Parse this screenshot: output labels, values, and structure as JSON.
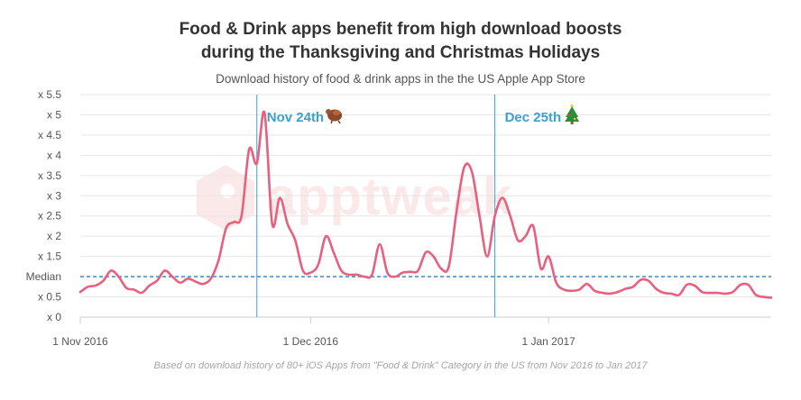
{
  "title_line1": "Food & Drink apps benefit from high download boosts",
  "title_line2": "during the Thanksgiving and Christmas Holidays",
  "subtitle": "Download history of food & drink apps in the the US Apple App Store",
  "footnote": "Based on download history of 80+ iOS Apps from \"Food & Drink\" Category in the US from Nov 2016 to Jan 2017",
  "watermark": "apptweak",
  "colors": {
    "line": "#e8607e",
    "median": "#2b7fc6",
    "marker": "#3d9fd3",
    "grid": "#e6e6e6"
  },
  "chart_data": {
    "type": "line",
    "title": "Food & Drink apps benefit from high download boosts during the Thanksgiving and Christmas Holidays",
    "subtitle": "Download history of food & drink apps in the the US Apple App Store",
    "x_start": "2016-11-01",
    "x_end": "2017-01-30",
    "xlim": [
      "2016-11-01",
      "2017-01-30"
    ],
    "ylim": [
      0,
      5.5
    ],
    "y_ticks": [
      {
        "value": 0,
        "label": "x 0"
      },
      {
        "value": 0.5,
        "label": "x 0.5"
      },
      {
        "value": 1,
        "label": "Median"
      },
      {
        "value": 1.5,
        "label": "x 1.5"
      },
      {
        "value": 2,
        "label": "x 2"
      },
      {
        "value": 2.5,
        "label": "x 2.5"
      },
      {
        "value": 3,
        "label": "x 3"
      },
      {
        "value": 3.5,
        "label": "x 3.5"
      },
      {
        "value": 4,
        "label": "x 4"
      },
      {
        "value": 4.5,
        "label": "x 4.5"
      },
      {
        "value": 5,
        "label": "x 5"
      },
      {
        "value": 5.5,
        "label": "x 5.5"
      }
    ],
    "x_ticks": [
      {
        "date": "2016-11-01",
        "label": "1 Nov 2016"
      },
      {
        "date": "2016-12-01",
        "label": "1 Dec 2016"
      },
      {
        "date": "2017-01-01",
        "label": "1 Jan 2017"
      }
    ],
    "median": 1,
    "grid": true,
    "annotations": [
      {
        "date": "2016-11-24",
        "label": "Nov 24th",
        "icon": "turkey-icon"
      },
      {
        "date": "2016-12-25",
        "label": "Dec 25th",
        "icon": "christmas-tree-icon"
      }
    ],
    "series": [
      {
        "x": [
          "2016-11-01",
          "2016-11-02",
          "2016-11-03",
          "2016-11-04",
          "2016-11-05",
          "2016-11-06",
          "2016-11-07",
          "2016-11-08",
          "2016-11-09",
          "2016-11-10",
          "2016-11-11",
          "2016-11-12",
          "2016-11-13",
          "2016-11-14",
          "2016-11-15",
          "2016-11-16",
          "2016-11-17",
          "2016-11-18",
          "2016-11-19",
          "2016-11-20",
          "2016-11-21",
          "2016-11-22",
          "2016-11-23",
          "2016-11-24",
          "2016-11-25",
          "2016-11-26",
          "2016-11-27",
          "2016-11-28",
          "2016-11-29",
          "2016-11-30",
          "2016-12-01",
          "2016-12-02",
          "2016-12-03",
          "2016-12-04",
          "2016-12-05",
          "2016-12-06",
          "2016-12-07",
          "2016-12-08",
          "2016-12-09",
          "2016-12-10",
          "2016-12-11",
          "2016-12-12",
          "2016-12-13",
          "2016-12-14",
          "2016-12-15",
          "2016-12-16",
          "2016-12-17",
          "2016-12-18",
          "2016-12-19",
          "2016-12-20",
          "2016-12-21",
          "2016-12-22",
          "2016-12-23",
          "2016-12-24",
          "2016-12-25",
          "2016-12-26",
          "2016-12-27",
          "2016-12-28",
          "2016-12-29",
          "2016-12-30",
          "2016-12-31",
          "2017-01-01",
          "2017-01-02",
          "2017-01-03",
          "2017-01-04",
          "2017-01-05",
          "2017-01-06",
          "2017-01-07",
          "2017-01-08",
          "2017-01-09",
          "2017-01-10",
          "2017-01-11",
          "2017-01-12",
          "2017-01-13",
          "2017-01-14",
          "2017-01-15",
          "2017-01-16",
          "2017-01-17",
          "2017-01-18",
          "2017-01-19",
          "2017-01-20",
          "2017-01-21",
          "2017-01-22",
          "2017-01-23",
          "2017-01-24",
          "2017-01-25",
          "2017-01-26",
          "2017-01-27",
          "2017-01-28",
          "2017-01-29",
          "2017-01-30"
        ],
        "values": [
          0.62,
          0.75,
          0.78,
          0.9,
          1.15,
          1.0,
          0.72,
          0.68,
          0.6,
          0.78,
          0.9,
          1.15,
          1.0,
          0.85,
          0.95,
          0.88,
          0.82,
          0.95,
          1.4,
          2.2,
          2.35,
          2.5,
          4.15,
          3.8,
          5.05,
          2.3,
          2.95,
          2.3,
          1.9,
          1.15,
          1.1,
          1.3,
          2.0,
          1.6,
          1.15,
          1.05,
          1.05,
          1.0,
          1.05,
          1.8,
          1.1,
          1.0,
          1.1,
          1.12,
          1.15,
          1.6,
          1.5,
          1.2,
          1.25,
          2.6,
          3.7,
          3.6,
          2.5,
          1.5,
          2.5,
          2.95,
          2.5,
          1.9,
          2.0,
          2.25,
          1.2,
          1.5,
          0.85,
          0.68,
          0.65,
          0.68,
          0.82,
          0.65,
          0.6,
          0.58,
          0.62,
          0.7,
          0.75,
          0.92,
          0.9,
          0.7,
          0.6,
          0.58,
          0.55,
          0.8,
          0.78,
          0.62,
          0.6,
          0.6,
          0.58,
          0.62,
          0.8,
          0.8,
          0.55,
          0.5,
          0.48
        ]
      }
    ]
  }
}
